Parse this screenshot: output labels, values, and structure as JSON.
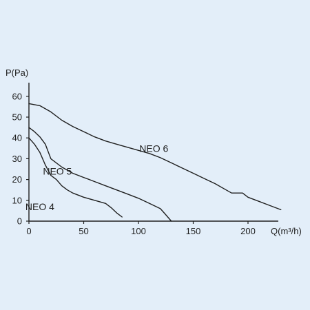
{
  "chart_data": {
    "type": "line",
    "title": "",
    "xlabel": "Q(m³/h)",
    "ylabel": "P(Pa)",
    "xlim": [
      0,
      240
    ],
    "ylim": [
      0,
      60
    ],
    "x_ticks": [
      "0",
      "50",
      "100",
      "150",
      "200"
    ],
    "y_ticks": [
      "0",
      "10",
      "20",
      "30",
      "40",
      "50",
      "60"
    ],
    "grid": false,
    "legend": "none",
    "series": [
      {
        "name": "NEO 4",
        "x": [
          0,
          5,
          10,
          15,
          20,
          25,
          30,
          35,
          40,
          50,
          60,
          70,
          75,
          80,
          85
        ],
        "y": [
          40,
          37,
          33,
          27,
          22,
          20,
          17,
          15,
          13.5,
          11.5,
          10,
          8.5,
          6.5,
          4,
          2
        ]
      },
      {
        "name": "NEO 5",
        "x": [
          0,
          5,
          10,
          15,
          20,
          30,
          40,
          50,
          60,
          70,
          80,
          90,
          100,
          110,
          120,
          125,
          130
        ],
        "y": [
          45,
          43,
          40.5,
          37,
          30,
          26,
          23,
          21,
          19,
          17,
          15,
          13,
          11,
          8.5,
          6,
          3,
          0
        ]
      },
      {
        "name": "NEO 6",
        "x": [
          0,
          10,
          20,
          30,
          40,
          50,
          60,
          70,
          80,
          90,
          100,
          110,
          120,
          130,
          140,
          150,
          160,
          170,
          180,
          185,
          190,
          195,
          200,
          210,
          220,
          230
        ],
        "y": [
          56.5,
          55.5,
          52.5,
          48.5,
          45.5,
          43,
          40.5,
          38.5,
          37,
          35.5,
          34,
          32.5,
          30.5,
          28,
          25.5,
          23,
          20.5,
          18,
          15,
          13.5,
          13.5,
          13.5,
          11.5,
          9.5,
          7.5,
          5.5
        ]
      }
    ],
    "annotations": [
      {
        "text": "NEO 4",
        "x": 10,
        "y": 7
      },
      {
        "text": "NEO 5",
        "x": 26,
        "y": 24
      },
      {
        "text": "NEO 6",
        "x": 114,
        "y": 35
      }
    ]
  }
}
